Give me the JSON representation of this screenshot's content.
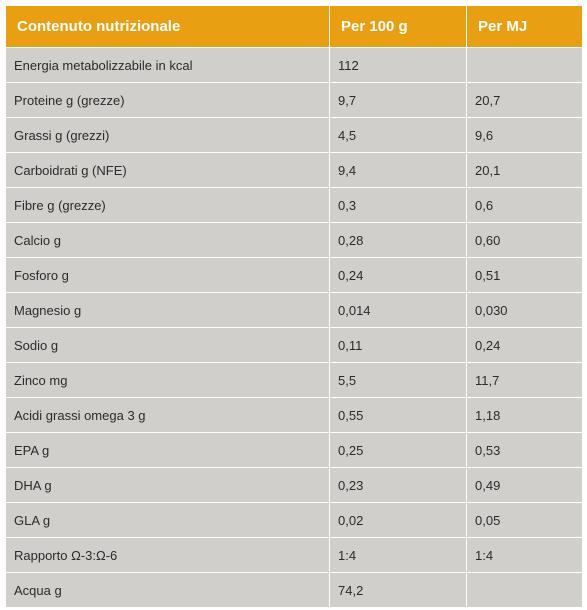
{
  "table": {
    "headers": [
      "Contenuto nutrizionale",
      "Per 100 g",
      "Per MJ"
    ],
    "rows": [
      [
        "Energia metabolizzabile in kcal",
        "112",
        ""
      ],
      [
        "Proteine g (grezze)",
        "9,7",
        "20,7"
      ],
      [
        "Grassi g (grezzi)",
        "4,5",
        "9,6"
      ],
      [
        "Carboidrati g (NFE)",
        "9,4",
        "20,1"
      ],
      [
        "Fibre g (grezze)",
        "0,3",
        "0,6"
      ],
      [
        "Calcio g",
        "0,28",
        "0,60"
      ],
      [
        "Fosforo g",
        "0,24",
        "0,51"
      ],
      [
        "Magnesio g",
        "0,014",
        "0,030"
      ],
      [
        "Sodio g",
        "0,11",
        "0,24"
      ],
      [
        "Zinco mg",
        "5,5",
        "11,7"
      ],
      [
        "Acidi grassi omega 3 g",
        "0,55",
        "1,18"
      ],
      [
        "EPA g",
        "0,25",
        "0,53"
      ],
      [
        "DHA g",
        "0,23",
        "0,49"
      ],
      [
        "GLA g",
        "0,02",
        "0,05"
      ],
      [
        "Rapporto Ω-3:Ω-6",
        "1:4",
        "1:4"
      ],
      [
        "Acqua g",
        "74,2",
        ""
      ]
    ]
  },
  "colors": {
    "header_bg": "#e8a012",
    "header_text": "#ffffff",
    "cell_bg": "#d0cfcc",
    "cell_text": "#2b2b2b",
    "grid_line": "#ffffff"
  }
}
